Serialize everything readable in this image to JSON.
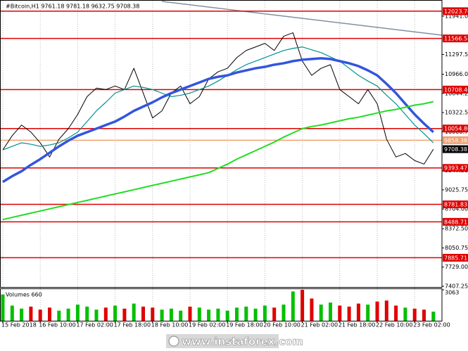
{
  "chart_data": {
    "type": "line",
    "title": "#Bitcoin,H1  9761.18 9781.18 9632.75 9708.38",
    "watermark": "www.instaforex.com",
    "categories": [
      "15 Feb 2018",
      null,
      null,
      null,
      "16 Feb 10:00",
      null,
      null,
      null,
      "17 Feb 02:00",
      null,
      null,
      null,
      "17 Feb 18:00",
      null,
      null,
      null,
      "18 Feb 10:00",
      null,
      null,
      null,
      "19 Feb 02:00",
      null,
      null,
      null,
      "19 Feb 18:00",
      null,
      null,
      null,
      "20 Feb 10:00",
      null,
      null,
      null,
      "21 Feb 02:00",
      null,
      null,
      null,
      "21 Feb 18:00",
      null,
      null,
      null,
      "22 Feb 10:00",
      null,
      null,
      null,
      "23 Feb 02:00",
      null,
      null
    ],
    "series": [
      {
        "color": "#000000",
        "width": 1,
        "values": [
          9696,
          9934,
          10113,
          9994,
          9815,
          9577,
          9875,
          10053,
          10292,
          10590,
          10733,
          10709,
          10768,
          10709,
          11066,
          10650,
          10232,
          10351,
          10650,
          10768,
          10470,
          10590,
          10888,
          11007,
          11066,
          11245,
          11365,
          11424,
          11484,
          11365,
          11603,
          11662,
          11186,
          10947,
          11066,
          11126,
          10709,
          10590,
          10470,
          10709,
          10470,
          9875,
          9577,
          9636,
          9517,
          9457,
          9708
        ]
      },
      {
        "color": "#009090",
        "width": 1.2,
        "values": [
          9696,
          9755,
          9815,
          9791,
          9755,
          9779,
          9815,
          9898,
          9994,
          10172,
          10351,
          10494,
          10649,
          10709,
          10768,
          10745,
          10709,
          10649,
          10590,
          10613,
          10649,
          10709,
          10768,
          10852,
          10947,
          11043,
          11126,
          11186,
          11245,
          11305,
          11364,
          11400,
          11424,
          11376,
          11329,
          11257,
          11186,
          11066,
          10947,
          10852,
          10768,
          10613,
          10470,
          10292,
          10113,
          9970,
          9815
        ]
      },
      {
        "color": "#3355dd",
        "width": 3.5,
        "values": [
          9159,
          9255,
          9338,
          9445,
          9541,
          9648,
          9755,
          9851,
          9934,
          9994,
          10053,
          10113,
          10172,
          10256,
          10351,
          10423,
          10494,
          10578,
          10649,
          10709,
          10768,
          10828,
          10888,
          10923,
          10947,
          10995,
          11031,
          11066,
          11090,
          11126,
          11150,
          11186,
          11209,
          11221,
          11233,
          11221,
          11186,
          11150,
          11102,
          11031,
          10947,
          10804,
          10649,
          10470,
          10292,
          10137,
          9994
        ]
      },
      {
        "color": "#22dd22",
        "width": 2,
        "values": [
          8527,
          8563,
          8599,
          8635,
          8671,
          8706,
          8742,
          8778,
          8814,
          8849,
          8885,
          8921,
          8957,
          8992,
          9028,
          9064,
          9100,
          9135,
          9171,
          9207,
          9243,
          9278,
          9314,
          9386,
          9457,
          9541,
          9612,
          9684,
          9755,
          9827,
          9910,
          9982,
          10053,
          10089,
          10113,
          10149,
          10184,
          10220,
          10244,
          10280,
          10315,
          10351,
          10375,
          10411,
          10447,
          10470,
          10506
        ]
      }
    ],
    "ylim": [
      7395,
      12200
    ],
    "yticks": [
      {
        "value": 11941,
        "label": "11941.00"
      },
      {
        "value": 11297.5,
        "label": "11297.50"
      },
      {
        "value": 10966,
        "label": "10966.00"
      },
      10644.25,
      {
        "value": 10322.5,
        "label": "10322.50"
      },
      10000.75,
      {
        "value": 9347.5,
        "label": "9347.50"
      },
      9025.75,
      {
        "value": 8704,
        "label": "8704.00"
      },
      {
        "value": 8372.5,
        "label": "8372.50"
      },
      8050.75,
      {
        "value": 7729,
        "label": "7729.00"
      },
      7407.25
    ],
    "levels": [
      {
        "value": 12023.76,
        "color": "#e00000"
      },
      {
        "value": 11566.58,
        "color": "#e00000"
      },
      {
        "value": 10708.4,
        "label": "10708.40",
        "color": "#e00000"
      },
      {
        "value": 10054.8,
        "label": "10054.80",
        "color": "#e00000"
      },
      {
        "value": 9858.38,
        "color": "#f0a070"
      },
      {
        "value": 9708.38,
        "color": "#000000"
      },
      {
        "value": 9393.47,
        "color": "#e00000"
      },
      {
        "value": 8781.83,
        "color": "#e00000"
      },
      {
        "value": 8488.71,
        "color": "#e00000"
      },
      {
        "value": 7885.71,
        "color": "#e00000"
      }
    ],
    "grid": true,
    "volume": {
      "title": "Volumes 660",
      "up_color": "#00c000",
      "down_color": "#e00000",
      "ylim": [
        0,
        3063
      ],
      "yticks": [
        3063
      ],
      "values": [
        2600,
        1500,
        1200,
        1400,
        1100,
        1300,
        1000,
        1200,
        1600,
        1400,
        1100,
        1300,
        1500,
        1200,
        1700,
        1400,
        1300,
        1100,
        1200,
        1000,
        1400,
        1300,
        1100,
        1200,
        1000,
        1300,
        1400,
        1200,
        1500,
        1300,
        1600,
        2900,
        3063,
        2200,
        1600,
        1800,
        1500,
        1400,
        1700,
        1600,
        1900,
        2000,
        1500,
        1300,
        1200,
        1100,
        900
      ]
    }
  }
}
